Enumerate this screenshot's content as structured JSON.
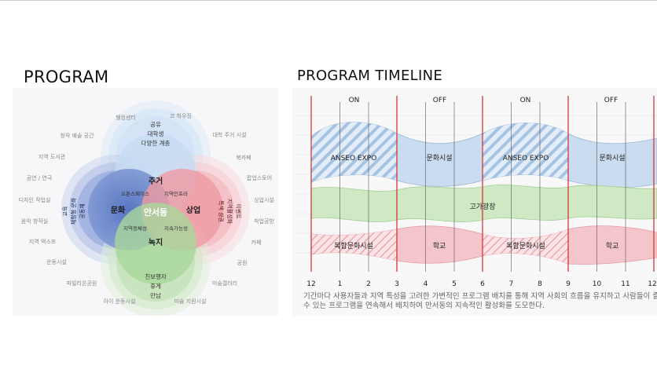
{
  "titles": {
    "left": "PROGRAM",
    "right": "PROGRAM TIMELINE"
  },
  "colors": {
    "blue": "#6f86c8",
    "lightblue": "#cfe0f3",
    "red": "#ef9aa3",
    "green": "#a9d79b",
    "grid_red": "#d22a2a"
  },
  "venn": {
    "center": "안서동",
    "circles": {
      "housing": {
        "label": "주거",
        "items": [
          "공유",
          "대학생",
          "다양한 계층"
        ]
      },
      "culture": {
        "label": "문화",
        "items": [
          "교육",
          "체험형 문화",
          "공동체"
        ]
      },
      "commerce": {
        "label": "상업",
        "items": [
          "이벤트",
          "지역활성화",
          "특색 상권"
        ]
      },
      "green": {
        "label": "녹지",
        "items": [
          "친보행자",
          "휴게",
          "만남"
        ]
      }
    },
    "overlaps": {
      "housing_culture": "오픈스페이스",
      "housing_commerce": "지역인프라",
      "culture_green": "지역정체성",
      "commerce_green": "지속가능성"
    },
    "outer_labels": [
      "웰컴센터",
      "코 하우징",
      "대학 주거 시설",
      "북카페",
      "팝업스토어",
      "상업시설",
      "착업공방",
      "카페",
      "공원",
      "미술갤러리",
      "미술 지원시설",
      "아이 운동시설",
      "파빌리온공원",
      "운동시설",
      "지역 액스포",
      "음악 창작실",
      "디자인 작업실",
      "공연 / 연극",
      "지역 도서관",
      "창작 예술 공간"
    ]
  },
  "timeline": {
    "phases": [
      "ON",
      "OFF",
      "ON",
      "OFF"
    ],
    "months": [
      "12",
      "1",
      "2",
      "3",
      "4",
      "5",
      "6",
      "7",
      "8",
      "9",
      "10",
      "11",
      "12"
    ],
    "bands": {
      "top": [
        "ANSEO EXPO",
        "문화시설",
        "ANSEO EXPO",
        "문화시설"
      ],
      "middle": [
        "고가광장"
      ],
      "bottom": [
        "복합문화시설",
        "학교",
        "복합문화시설",
        "학교"
      ]
    },
    "caption": [
      "기간마다 사용자들과 지역 특성을 고려한 가변적인 프로그램 배치를 통해 지역 사회의 흐름을 유지하고 사람들이 즐길",
      "수 있는 프로그램을 연속해서 배치하여 안서동의 지속적인 활성화를 도모한다."
    ]
  }
}
